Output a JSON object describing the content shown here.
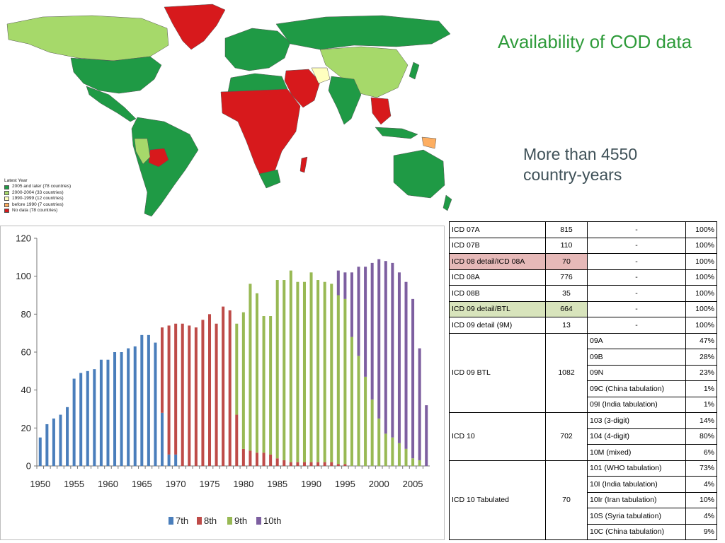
{
  "header": {
    "title": "Availability of COD data",
    "subtitle_line1": "More than 4550",
    "subtitle_line2": "country-years"
  },
  "map": {
    "legend_title": "Latest Year",
    "legend": [
      {
        "label": "2005 and later (78 countries)",
        "color": "#1f9a45"
      },
      {
        "label": "2000-2004 (33 countries)",
        "color": "#a6d96a"
      },
      {
        "label": "1990-1999 (12 countries)",
        "color": "#ffffbf"
      },
      {
        "label": "before 1990 (7 countries)",
        "color": "#fdae61"
      },
      {
        "label": "No data (78 countries)",
        "color": "#d7191c"
      }
    ]
  },
  "chart_data": {
    "type": "bar",
    "title": "",
    "xlabel": "",
    "ylabel": "",
    "ylim": [
      0,
      120
    ],
    "yticks": [
      0,
      20,
      40,
      60,
      80,
      100,
      120
    ],
    "x": [
      1950,
      1951,
      1952,
      1953,
      1954,
      1955,
      1956,
      1957,
      1958,
      1959,
      1960,
      1961,
      1962,
      1963,
      1964,
      1965,
      1966,
      1967,
      1968,
      1969,
      1970,
      1971,
      1972,
      1973,
      1974,
      1975,
      1976,
      1977,
      1978,
      1979,
      1980,
      1981,
      1982,
      1983,
      1984,
      1985,
      1986,
      1987,
      1988,
      1989,
      1990,
      1991,
      1992,
      1993,
      1994,
      1995,
      1996,
      1997,
      1998,
      1999,
      2000,
      2001,
      2002,
      2003,
      2004,
      2005,
      2006,
      2007
    ],
    "xticks": [
      1950,
      1955,
      1960,
      1965,
      1970,
      1975,
      1980,
      1985,
      1990,
      1995,
      2000,
      2005
    ],
    "stacked": true,
    "grid": false,
    "legend_position": "bottom",
    "series": [
      {
        "name": "7th",
        "color": "#4a7ebb",
        "values": [
          15,
          22,
          25,
          27,
          31,
          46,
          49,
          50,
          51,
          56,
          56,
          60,
          60,
          62,
          63,
          69,
          69,
          65,
          28,
          6,
          6,
          0,
          0,
          0,
          0,
          0,
          0,
          0,
          0,
          0,
          0,
          0,
          0,
          0,
          0,
          0,
          0,
          0,
          0,
          0,
          0,
          0,
          0,
          0,
          0,
          0,
          0,
          0,
          0,
          0,
          0,
          0,
          0,
          0,
          0,
          0,
          0,
          0
        ]
      },
      {
        "name": "8th",
        "color": "#be4b48",
        "values": [
          0,
          0,
          0,
          0,
          0,
          0,
          0,
          0,
          0,
          0,
          0,
          0,
          0,
          0,
          0,
          0,
          0,
          0,
          45,
          68,
          69,
          75,
          74,
          73,
          77,
          80,
          75,
          84,
          82,
          27,
          9,
          8,
          7,
          7,
          6,
          4,
          3,
          2,
          2,
          2,
          2,
          2,
          2,
          2,
          1,
          1,
          0,
          0,
          0,
          0,
          0,
          0,
          0,
          0,
          0,
          0,
          0,
          0
        ]
      },
      {
        "name": "9th",
        "color": "#98b954",
        "values": [
          0,
          0,
          0,
          0,
          0,
          0,
          0,
          0,
          0,
          0,
          0,
          0,
          0,
          0,
          0,
          0,
          0,
          0,
          0,
          0,
          0,
          0,
          0,
          0,
          0,
          0,
          0,
          0,
          0,
          48,
          72,
          88,
          84,
          72,
          73,
          94,
          95,
          101,
          95,
          95,
          100,
          96,
          95,
          94,
          89,
          87,
          68,
          58,
          47,
          35,
          25,
          17,
          15,
          12,
          9,
          4,
          3,
          0
        ]
      },
      {
        "name": "10th",
        "color": "#7d5fa0",
        "values": [
          0,
          0,
          0,
          0,
          0,
          0,
          0,
          0,
          0,
          0,
          0,
          0,
          0,
          0,
          0,
          0,
          0,
          0,
          0,
          0,
          0,
          0,
          0,
          0,
          0,
          0,
          0,
          0,
          0,
          0,
          0,
          0,
          0,
          0,
          0,
          0,
          0,
          0,
          0,
          0,
          0,
          0,
          0,
          0,
          13,
          14,
          34,
          47,
          58,
          72,
          84,
          91,
          92,
          90,
          88,
          84,
          59,
          32
        ]
      }
    ]
  },
  "table": {
    "rows": [
      {
        "revision": "ICD 07A",
        "count": "815",
        "sub": [
          {
            "name": "-",
            "pct": "100%"
          }
        ]
      },
      {
        "revision": "ICD 07B",
        "count": "110",
        "sub": [
          {
            "name": "-",
            "pct": "100%"
          }
        ]
      },
      {
        "revision": "ICD 08 detail/ICD 08A",
        "count": "70",
        "sub": [
          {
            "name": "-",
            "pct": "100%"
          }
        ],
        "highlight": "pink"
      },
      {
        "revision": "ICD 08A",
        "count": "776",
        "sub": [
          {
            "name": "-",
            "pct": "100%"
          }
        ]
      },
      {
        "revision": "ICD 08B",
        "count": "35",
        "sub": [
          {
            "name": "-",
            "pct": "100%"
          }
        ]
      },
      {
        "revision": "ICD 09 detail/BTL",
        "count": "664",
        "sub": [
          {
            "name": "-",
            "pct": "100%"
          }
        ],
        "highlight": "green"
      },
      {
        "revision": "ICD 09 detail (9M)",
        "count": "13",
        "sub": [
          {
            "name": "-",
            "pct": "100%"
          }
        ]
      },
      {
        "revision": "ICD 09 BTL",
        "count": "1082",
        "sub": [
          {
            "name": "09A",
            "pct": "47%"
          },
          {
            "name": "09B",
            "pct": "28%"
          },
          {
            "name": "09N",
            "pct": "23%"
          },
          {
            "name": "09C (China tabulation)",
            "pct": "1%"
          },
          {
            "name": "09I (India tabulation)",
            "pct": "1%"
          }
        ]
      },
      {
        "revision": "ICD 10",
        "count": "702",
        "sub": [
          {
            "name": "103 (3-digit)",
            "pct": "14%"
          },
          {
            "name": "104 (4-digit)",
            "pct": "80%"
          },
          {
            "name": "10M (mixed)",
            "pct": "6%"
          }
        ]
      },
      {
        "revision": "ICD 10 Tabulated",
        "count": "70",
        "sub": [
          {
            "name": "101 (WHO tabulation)",
            "pct": "73%"
          },
          {
            "name": "10I (India tabulation)",
            "pct": "4%"
          },
          {
            "name": "10Ir (Iran tabulation)",
            "pct": "10%"
          },
          {
            "name": "10S (Syria tabulation)",
            "pct": "4%"
          },
          {
            "name": "10C (China tabulation)",
            "pct": "9%"
          }
        ]
      }
    ]
  }
}
